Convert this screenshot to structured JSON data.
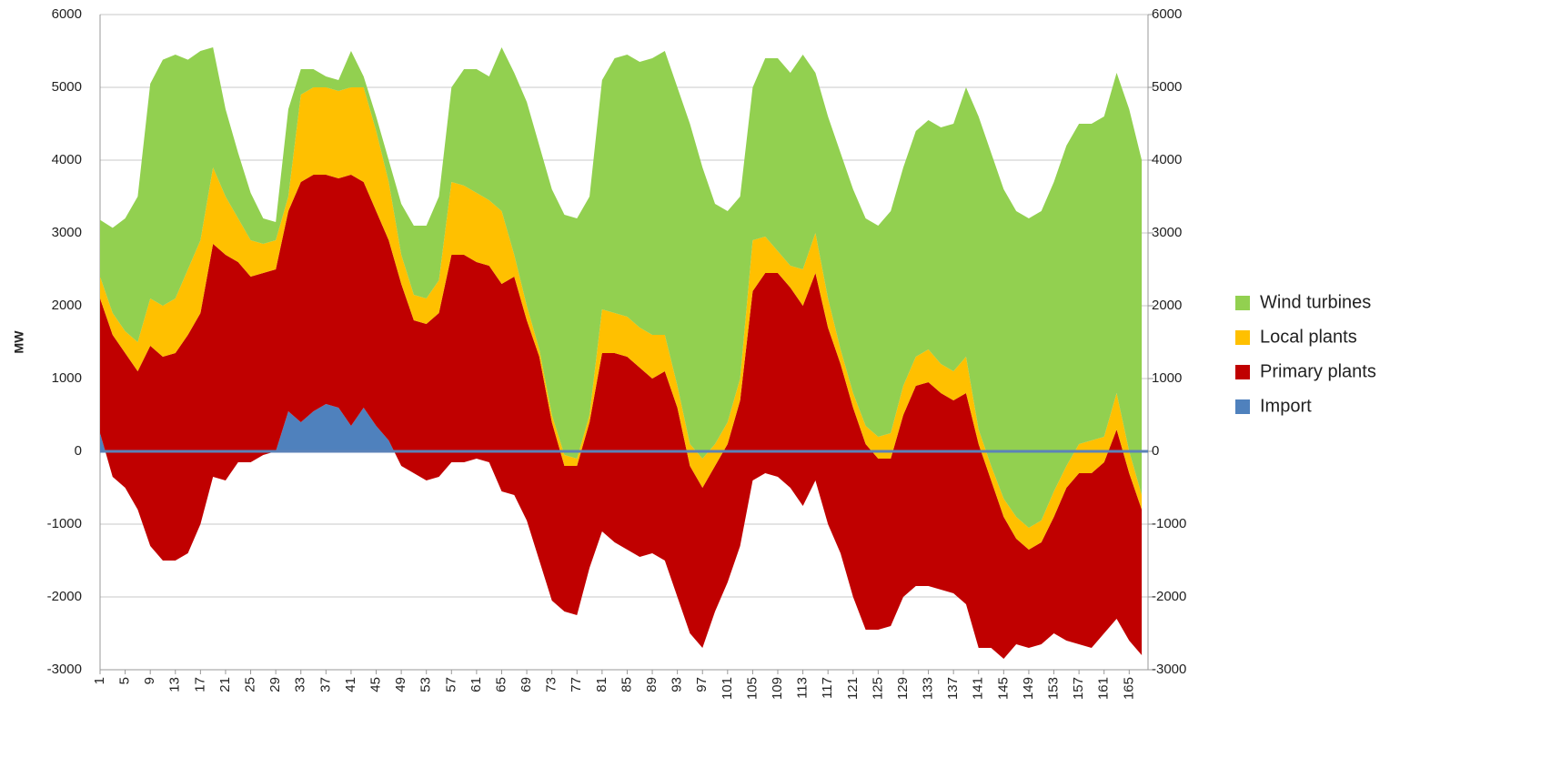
{
  "chart_data": {
    "type": "stacked-area",
    "y_label": "MW",
    "x": [
      1,
      3,
      5,
      7,
      9,
      11,
      13,
      15,
      17,
      19,
      21,
      23,
      25,
      27,
      29,
      31,
      33,
      35,
      37,
      39,
      41,
      43,
      45,
      47,
      49,
      51,
      53,
      55,
      57,
      59,
      61,
      63,
      65,
      67,
      69,
      71,
      73,
      75,
      77,
      79,
      81,
      83,
      85,
      87,
      89,
      91,
      93,
      95,
      97,
      99,
      101,
      103,
      105,
      107,
      109,
      111,
      113,
      115,
      117,
      119,
      121,
      123,
      125,
      127,
      129,
      131,
      133,
      135,
      137,
      139,
      141,
      143,
      145,
      147,
      149,
      151,
      153,
      155,
      157,
      159,
      161,
      163,
      165,
      167
    ],
    "xlim": [
      1,
      168
    ],
    "xticks": [
      1,
      5,
      9,
      13,
      17,
      21,
      25,
      29,
      33,
      37,
      41,
      45,
      49,
      53,
      57,
      61,
      65,
      69,
      73,
      77,
      81,
      85,
      89,
      93,
      97,
      101,
      105,
      109,
      113,
      117,
      121,
      125,
      129,
      133,
      137,
      141,
      145,
      149,
      153,
      157,
      161,
      165
    ],
    "ylim": [
      -3000,
      6000
    ],
    "yticks": [
      -3000,
      -2000,
      -1000,
      0,
      1000,
      2000,
      3000,
      4000,
      5000,
      6000
    ],
    "y2lim": [
      -3000,
      6000
    ],
    "y2ticks": [
      -3000,
      -2000,
      -1000,
      0,
      1000,
      2000,
      3000,
      4000,
      5000,
      6000
    ],
    "grid": true,
    "legend": "right",
    "series": [
      {
        "name": "Import",
        "color": "#4f81bd",
        "values": [
          250,
          -350,
          -500,
          -800,
          -1300,
          -1500,
          -1500,
          -1400,
          -1000,
          -350,
          -400,
          -150,
          -150,
          -50,
          0,
          550,
          400,
          550,
          650,
          600,
          350,
          600,
          350,
          150,
          -200,
          -300,
          -400,
          -350,
          -150,
          -150,
          -100,
          -150,
          -550,
          -600,
          -950,
          -1500,
          -2050,
          -2200,
          -2250,
          -1600,
          -1100,
          -1250,
          -1350,
          -1450,
          -1400,
          -1500,
          -2000,
          -2500,
          -2700,
          -2200,
          -1800,
          -1300,
          -400,
          -300,
          -350,
          -500,
          -750,
          -400,
          -1000,
          -1400,
          -2000,
          -2450,
          -2450,
          -2400,
          -2000,
          -1850,
          -1850,
          -1900,
          -1950,
          -2100,
          -2700,
          -2700,
          -2850,
          -2650,
          -2700,
          -2650,
          -2500,
          -2600,
          -2650,
          -2700,
          -2500,
          -2300,
          -2600,
          -2800
        ]
      },
      {
        "name": "Primary plants",
        "color": "#c00000",
        "values": [
          1850,
          1950,
          1850,
          1900,
          2750,
          2800,
          2850,
          3000,
          2900,
          3200,
          3100,
          2750,
          2550,
          2500,
          2500,
          2750,
          3300,
          3250,
          3150,
          3150,
          3450,
          3100,
          2950,
          2750,
          2500,
          2100,
          2150,
          2250,
          2850,
          2850,
          2700,
          2700,
          2850,
          3000,
          2750,
          2800,
          2450,
          2000,
          2050,
          2000,
          2450,
          2600,
          2650,
          2600,
          2400,
          2600,
          2600,
          2300,
          2200,
          2000,
          1900,
          2000,
          2600,
          2750,
          2800,
          2750,
          2750,
          2850,
          2700,
          2600,
          2600,
          2550,
          2350,
          2300,
          2500,
          2750,
          2800,
          2700,
          2650,
          2900,
          2800,
          2300,
          1950,
          1450,
          1350,
          1400,
          1600,
          2100,
          2350,
          2400,
          2350,
          2600,
          2300,
          2000
        ]
      },
      {
        "name": "Local plants",
        "color": "#ffc000",
        "values": [
          300,
          300,
          300,
          400,
          650,
          700,
          750,
          900,
          1000,
          1050,
          800,
          600,
          500,
          400,
          400,
          200,
          1200,
          1200,
          1200,
          1200,
          1200,
          1300,
          1100,
          800,
          400,
          350,
          350,
          450,
          1000,
          950,
          950,
          900,
          1000,
          300,
          200,
          100,
          100,
          150,
          100,
          100,
          600,
          550,
          550,
          550,
          600,
          500,
          300,
          300,
          400,
          300,
          300,
          300,
          700,
          500,
          300,
          300,
          500,
          550,
          400,
          200,
          200,
          250,
          300,
          350,
          400,
          400,
          450,
          400,
          400,
          500,
          200,
          200,
          250,
          300,
          300,
          300,
          350,
          300,
          400,
          450,
          350,
          500,
          300,
          200
        ]
      },
      {
        "name": "Wind turbines",
        "color": "#92d050",
        "values": [
          780,
          1170,
          1550,
          2000,
          2950,
          3380,
          3350,
          2880,
          2600,
          1650,
          1200,
          900,
          650,
          350,
          250,
          1200,
          350,
          250,
          150,
          150,
          500,
          150,
          200,
          300,
          700,
          950,
          1000,
          1150,
          1300,
          1600,
          1700,
          1700,
          2250,
          2500,
          2800,
          2800,
          3100,
          3300,
          3300,
          3000,
          3150,
          3500,
          3600,
          3650,
          3800,
          3900,
          4100,
          4400,
          4000,
          3300,
          2900,
          2500,
          2100,
          2450,
          2650,
          2650,
          2950,
          2200,
          2500,
          2700,
          2800,
          2850,
          2900,
          3050,
          3000,
          3100,
          3150,
          3250,
          3400,
          3700,
          4300,
          4300,
          4250,
          4200,
          4250,
          4250,
          4250,
          4400,
          4400,
          4350,
          4400,
          4400,
          4700,
          4600
        ]
      }
    ]
  }
}
